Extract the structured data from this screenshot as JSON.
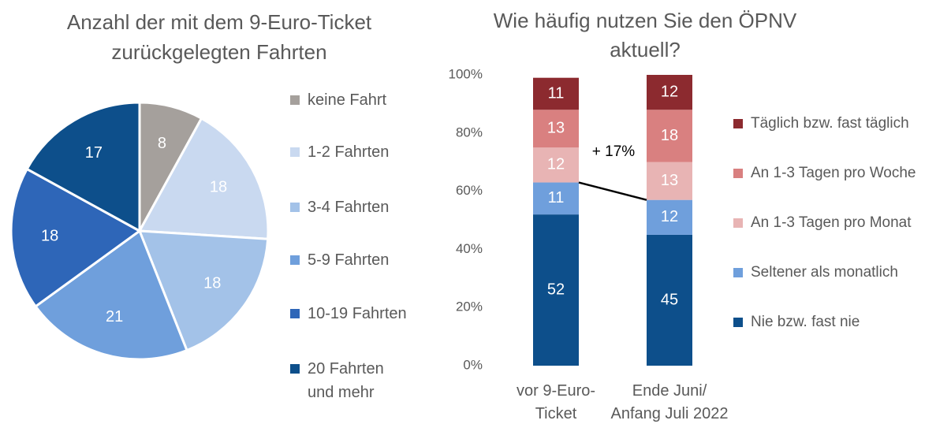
{
  "chart_data": [
    {
      "type": "pie",
      "title": [
        "Anzahl der mit dem 9-Euro-Ticket",
        "zurückgelegten Fahrten"
      ],
      "categories": [
        "keine Fahrt",
        "1-2 Fahrten",
        "3-4 Fahrten",
        "5-9 Fahrten",
        "10-19 Fahrten",
        "20 Fahrten und mehr"
      ],
      "values": [
        8,
        18,
        18,
        21,
        18,
        17
      ],
      "colors": [
        "#a5a09c",
        "#c9d9f0",
        "#a3c2e8",
        "#6f9fdc",
        "#2e66b8",
        "#0d4f8b"
      ]
    },
    {
      "type": "stacked_bar",
      "title": [
        "Wie häufig nutzen Sie den ÖPNV",
        "aktuell?"
      ],
      "categories": [
        "vor 9-Euro-Ticket",
        "Ende Juni/ Anfang Juli 2022"
      ],
      "series": [
        {
          "name": "Nie bzw. fast nie",
          "color": "#0d4f8b",
          "values": [
            52,
            45
          ]
        },
        {
          "name": "Seltener als monatlich",
          "color": "#6f9fdc",
          "values": [
            11,
            12
          ]
        },
        {
          "name": "An 1-3 Tagen pro Monat",
          "color": "#e8b4b4",
          "values": [
            12,
            13
          ]
        },
        {
          "name": "An 1-3 Tagen pro Woche",
          "color": "#d98080",
          "values": [
            13,
            18
          ]
        },
        {
          "name": "Täglich bzw. fast täglich",
          "color": "#8c2a2f",
          "values": [
            11,
            12
          ]
        }
      ],
      "ylim": [
        0,
        100
      ],
      "yticks": [
        {
          "value": 0,
          "label": "0%"
        },
        {
          "value": 20,
          "label": "20%"
        },
        {
          "value": 40,
          "label": "40%"
        },
        {
          "value": 60,
          "label": "60%"
        },
        {
          "value": 80,
          "label": "80%"
        },
        {
          "value": 100,
          "label": "100%"
        }
      ],
      "annotation": "+ 17%"
    }
  ]
}
